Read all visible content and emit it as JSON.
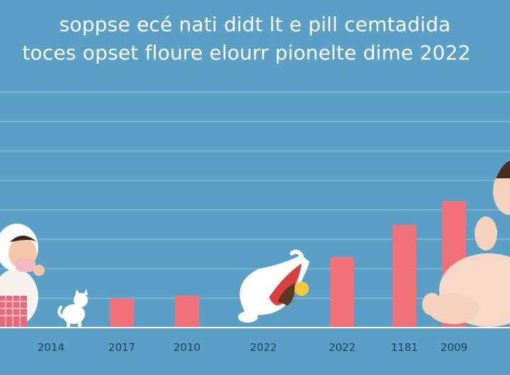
{
  "chart_data": {
    "type": "bar",
    "title": "soppse ecé nati didt  lt  e pill cemtadida",
    "subtitle": "toces opset floure elourr pionelte dime 2022",
    "categories": [
      "2014",
      "2017",
      "2010",
      "2022",
      "2022",
      "1181",
      "2009"
    ],
    "values": [
      0,
      1.0,
      1.1,
      0,
      2.4,
      3.5,
      4.3
    ],
    "ylim": [
      0,
      8
    ],
    "grid": true,
    "xlabel": "",
    "ylabel": "",
    "colors": {
      "background": "#5a9fc6",
      "bar": "#f07078",
      "grid": "#a8cde3",
      "text": "#ffffff",
      "tick_text": "#1f3f5c",
      "baseline": "#ffffff"
    }
  },
  "illustrations": [
    "baby-icon",
    "cat-icon",
    "baby-bib-icon",
    "baby-icon"
  ]
}
